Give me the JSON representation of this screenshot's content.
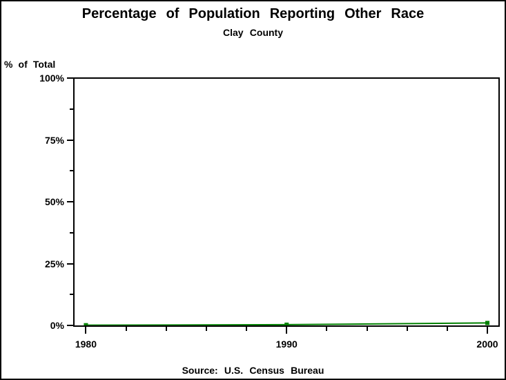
{
  "chart": {
    "title": "Percentage of Population Reporting Other Race",
    "subtitle": "Clay County",
    "y_axis_title": "% of Total",
    "footnote": "Source: U.S. Census Bureau"
  },
  "chart_data": {
    "type": "line",
    "title": "Percentage of Population Reporting Other Race",
    "subtitle": "Clay County",
    "footnote": "Source: U.S. Census Bureau",
    "xlabel": "",
    "ylabel": "% of Total",
    "x": [
      1980,
      1990,
      2000
    ],
    "values": [
      0.1,
      0.3,
      1.0
    ],
    "xlim": [
      1979.4,
      2000.55
    ],
    "ylim": [
      0,
      100
    ],
    "xticks": [
      {
        "v": 1980,
        "label": "1980"
      },
      {
        "v": 1990,
        "label": "1990"
      },
      {
        "v": 2000,
        "label": "2000"
      }
    ],
    "yticks": [
      {
        "v": 0,
        "label": "0%"
      },
      {
        "v": 25,
        "label": "25%"
      },
      {
        "v": 50,
        "label": "50%"
      },
      {
        "v": 75,
        "label": "75%"
      },
      {
        "v": 100,
        "label": "100%"
      }
    ],
    "x_minor_ticks": [
      1982,
      1984,
      1986,
      1988,
      1992,
      1994,
      1996,
      1998
    ],
    "y_minor_ticks": [
      12.5,
      37.5,
      62.5,
      87.5
    ],
    "grid": false,
    "legend": false,
    "line_color": "#008000",
    "marker": "square",
    "marker_size": 6,
    "frame_color": "#000000"
  }
}
